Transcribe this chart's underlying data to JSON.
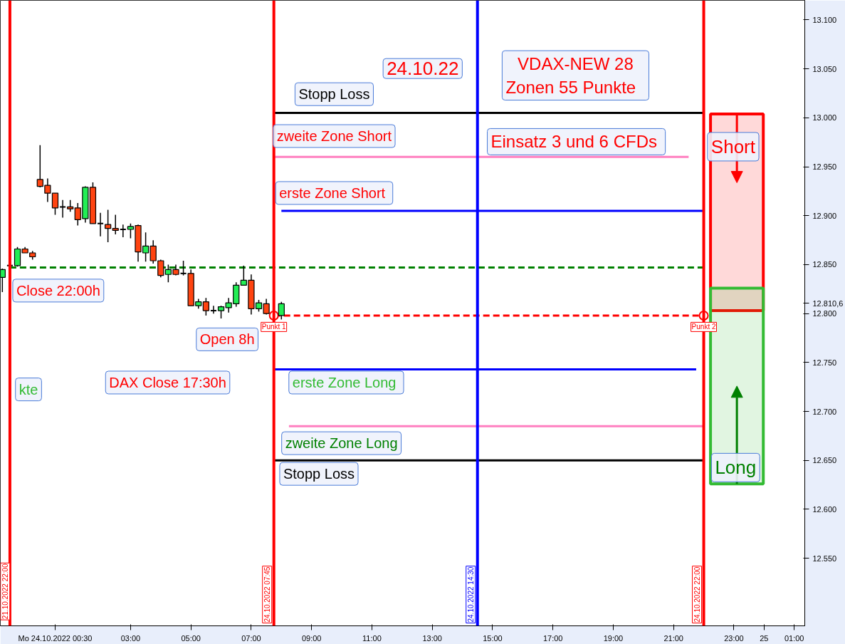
{
  "chart_data": {
    "type": "candlestick",
    "x": [
      "2022-10-23T22:45",
      "2022-10-23T23:00",
      "2022-10-23T23:15",
      "2022-10-23T23:30",
      "2022-10-23T23:45",
      "2022-10-24T00:00",
      "2022-10-24T00:15",
      "2022-10-24T00:30",
      "2022-10-24T00:45",
      "2022-10-24T01:00",
      "2022-10-24T01:15",
      "2022-10-24T01:30",
      "2022-10-24T01:45",
      "2022-10-24T02:00",
      "2022-10-24T02:15",
      "2022-10-24T02:30",
      "2022-10-24T02:45",
      "2022-10-24T03:00",
      "2022-10-24T03:15",
      "2022-10-24T03:30",
      "2022-10-24T03:45",
      "2022-10-24T04:00",
      "2022-10-24T04:15",
      "2022-10-24T04:30",
      "2022-10-24T04:45",
      "2022-10-24T05:00",
      "2022-10-24T05:15",
      "2022-10-24T05:30",
      "2022-10-24T05:45",
      "2022-10-24T06:00",
      "2022-10-24T06:15",
      "2022-10-24T06:30",
      "2022-10-24T06:45",
      "2022-10-24T07:00",
      "2022-10-24T07:15",
      "2022-10-24T07:30",
      "2022-10-24T08:00"
    ],
    "ohlc": [
      [
        12837,
        12846,
        12822,
        12845
      ],
      [
        12849,
        12850,
        12847,
        12849
      ],
      [
        12849,
        12868,
        12848,
        12866
      ],
      [
        12866,
        12868,
        12862,
        12862
      ],
      [
        12862,
        12864,
        12855,
        12858
      ],
      [
        12937,
        12972,
        12929,
        12930
      ],
      [
        12931,
        12938,
        12914,
        12923
      ],
      [
        12923,
        12923,
        12901,
        12908
      ],
      [
        12909,
        12916,
        12898,
        12909
      ],
      [
        12909,
        12916,
        12904,
        12907
      ],
      [
        12908,
        12913,
        12890,
        12896
      ],
      [
        12897,
        12930,
        12893,
        12929
      ],
      [
        12929,
        12934,
        12892,
        12892
      ],
      [
        12892,
        12903,
        12879,
        12892
      ],
      [
        12891,
        12906,
        12873,
        12887
      ],
      [
        12887,
        12901,
        12881,
        12885
      ],
      [
        12886,
        12891,
        12878,
        12886
      ],
      [
        12886,
        12892,
        12877,
        12889
      ],
      [
        12890,
        12891,
        12853,
        12863
      ],
      [
        12862,
        12883,
        12853,
        12869
      ],
      [
        12869,
        12875,
        12851,
        12854
      ],
      [
        12854,
        12855,
        12837,
        12839
      ],
      [
        12840,
        12850,
        12832,
        12845
      ],
      [
        12845,
        12850,
        12839,
        12840
      ],
      [
        12841,
        12854,
        12839,
        12841
      ],
      [
        12841,
        12845,
        12808,
        12808
      ],
      [
        12808,
        12815,
        12805,
        12812
      ],
      [
        12812,
        12816,
        12798,
        12803
      ],
      [
        12803,
        12808,
        12800,
        12803
      ],
      [
        12803,
        12808,
        12795,
        12807
      ],
      [
        12806,
        12816,
        12801,
        12811
      ],
      [
        12810,
        12832,
        12807,
        12829
      ],
      [
        12829,
        12849,
        12829,
        12834
      ],
      [
        12834,
        12840,
        12799,
        12805
      ],
      [
        12805,
        12814,
        12802,
        12811
      ],
      [
        12810,
        12815,
        12799,
        12800
      ],
      [
        12798,
        12812,
        12794,
        12810
      ]
    ],
    "series": [
      {
        "type": "line",
        "x": [
          "2022-10-24T07:45",
          "2022-10-24T22:00"
        ],
        "values": [
          13005,
          13005
        ],
        "color": "#000000"
      },
      {
        "type": "line",
        "x": [
          "2022-10-24T07:45",
          "2022-10-24T21:30"
        ],
        "values": [
          12960,
          12960
        ],
        "color": "#ff80c0"
      },
      {
        "type": "line",
        "x": [
          "2022-10-24T08:00",
          "2022-10-24T22:00"
        ],
        "values": [
          12905,
          12905
        ],
        "color": "#0000ff"
      },
      {
        "type": "line",
        "x": [
          "2022-10-23T23:00",
          "2022-10-24T22:00"
        ],
        "values": [
          12847,
          12847
        ],
        "color": "#008000",
        "line_style": "dashed"
      },
      {
        "type": "line",
        "x": [
          "2022-10-24T07:45",
          "2022-10-24T22:00"
        ],
        "values": [
          12798,
          12798
        ],
        "color": "#ff0000",
        "line_style": "dashed",
        "marker": "circle"
      },
      {
        "type": "line",
        "x": [
          "2022-10-24T07:45",
          "2022-10-24T21:45"
        ],
        "values": [
          12743,
          12743
        ],
        "color": "#0000ff"
      },
      {
        "type": "line",
        "x": [
          "2022-10-24T08:15",
          "2022-10-24T22:00"
        ],
        "values": [
          12685,
          12685
        ],
        "color": "#ff80c0"
      },
      {
        "type": "line",
        "x": [
          "2022-10-24T07:45",
          "2022-10-24T22:00"
        ],
        "values": [
          12650,
          12650
        ],
        "color": "#000000"
      },
      {
        "type": "bar",
        "x": [
          "2022-10-24T23:06"
        ],
        "base": [
          12803
        ],
        "values": [
          201
        ],
        "color": "#ff0000"
      },
      {
        "type": "bar",
        "x": [
          "2022-10-24T23:06"
        ],
        "base": [
          12626
        ],
        "values": [
          200
        ],
        "color": "#33bb33"
      }
    ],
    "ref_lines": [
      {
        "axis": "x",
        "value": "2022-10-23T23:00",
        "color": "#ff0000"
      },
      {
        "axis": "x",
        "value": "2022-10-24T07:45",
        "label": "24.10.2022 07:45",
        "color": "#ff0000"
      },
      {
        "axis": "x",
        "value": "2022-10-24T14:30",
        "label": "24.10.2022 14:30",
        "color": "#0000ff"
      },
      {
        "axis": "x",
        "value": "2022-10-24T22:00",
        "label": "24.10.2022 22:00",
        "color": "#ff0000"
      }
    ],
    "annotations": [
      "Close 22:00h",
      "Open 8h",
      {
        "text": "Punkt 1",
        "x": "2022-10-24T07:45",
        "y": 12798
      },
      {
        "text": "Punkt 2",
        "x": "2022-10-24T22:00",
        "y": 12798
      },
      "DAX Close 17:30h",
      "Stopp Loss",
      "zweite Zone Short",
      "erste  Zone Short",
      "erste  Zone Long",
      "zweite Zone Long",
      "Stopp Loss",
      "Short",
      "Long",
      "24.10.22",
      "VDAX-NEW 28\n Zonen 55  Punkte",
      "Einsatz  3 und 6 CFDs",
      "kte",
      "21.10.2022 22:00"
    ],
    "xlim": [
      "2022-10-23T22:41",
      "2022-10-25T01:21"
    ],
    "ylim": [
      12481,
      13120
    ],
    "xticks": [
      {
        "value": "2022-10-24T00:30",
        "label": "Mo 24.10.2022 00:30"
      },
      {
        "value": "2022-10-24T03:00",
        "label": "03:00"
      },
      {
        "value": "2022-10-24T05:00",
        "label": "05:00"
      },
      {
        "value": "2022-10-24T07:00",
        "label": "07:00"
      },
      {
        "value": "2022-10-24T09:00",
        "label": "09:00"
      },
      {
        "value": "2022-10-24T11:00",
        "label": "11:00"
      },
      {
        "value": "2022-10-24T13:00",
        "label": "13:00"
      },
      {
        "value": "2022-10-24T15:00",
        "label": "15:00"
      },
      {
        "value": "2022-10-24T17:00",
        "label": "17:00"
      },
      {
        "value": "2022-10-24T19:00",
        "label": "19:00"
      },
      {
        "value": "2022-10-24T21:00",
        "label": "21:00"
      },
      {
        "value": "2022-10-24T23:00",
        "label": "23:00"
      },
      {
        "value": "2022-10-25T00:00",
        "label": "25"
      },
      {
        "value": "2022-10-25T01:00",
        "label": "01:00"
      }
    ],
    "yticks": [
      {
        "value": 12550,
        "label": "12.550"
      },
      {
        "value": 12600,
        "label": "12.600"
      },
      {
        "value": 12650,
        "label": "12.650"
      },
      {
        "value": 12700,
        "label": "12.700"
      },
      {
        "value": 12750,
        "label": "12.750"
      },
      {
        "value": 12800,
        "label": "12.800"
      },
      {
        "value": 12810.6,
        "label": "12.810,6"
      },
      {
        "value": 12850,
        "label": "12.850"
      },
      {
        "value": 12900,
        "label": "12.900"
      },
      {
        "value": 12950,
        "label": "12.950"
      },
      {
        "value": 13000,
        "label": "13.000"
      },
      {
        "value": 13050,
        "label": "13.050"
      },
      {
        "value": 13100,
        "label": "13.100"
      }
    ],
    "grid": false
  }
}
